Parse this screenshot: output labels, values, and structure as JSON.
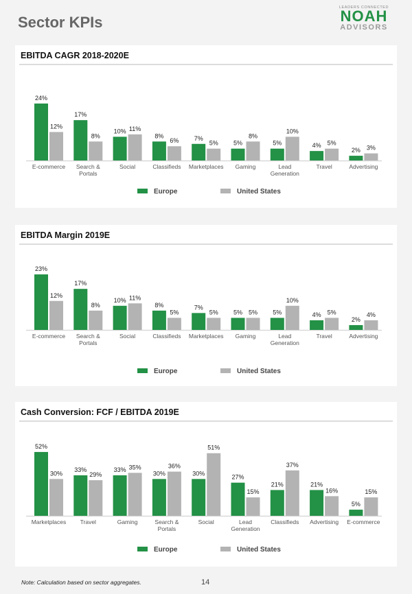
{
  "page": {
    "title": "Sector KPIs",
    "page_number": "14",
    "footnote": "Note: Calculation based on sector aggregates."
  },
  "logo": {
    "tagline": "LEADERS CONNECTED",
    "name": "NOAH",
    "sub": "ADVISORS"
  },
  "colors": {
    "europe": "#239146",
    "united_states": "#b3b3b3",
    "axis": "#d9d9d9",
    "label": "#555555",
    "value_label": "#222222"
  },
  "chart_data": [
    {
      "type": "bar",
      "title": "EBITDA CAGR 2018-2020E",
      "categories": [
        [
          "E-commerce"
        ],
        [
          "Search &",
          "Portals"
        ],
        [
          "Social"
        ],
        [
          "Classifieds"
        ],
        [
          "Marketplaces"
        ],
        [
          "Gaming"
        ],
        [
          "Lead",
          "Generation"
        ],
        [
          "Travel"
        ],
        [
          "Advertising"
        ]
      ],
      "series": [
        {
          "name": "Europe",
          "values": [
            24,
            17,
            10,
            8,
            7,
            5,
            5,
            4,
            2
          ]
        },
        {
          "name": "United States",
          "values": [
            12,
            8,
            11,
            6,
            5,
            8,
            10,
            5,
            3
          ]
        }
      ],
      "value_suffix": "%",
      "ylim": [
        0,
        26
      ],
      "legend": "bottom-center",
      "grid": false
    },
    {
      "type": "bar",
      "title": "EBITDA Margin 2019E",
      "categories": [
        [
          "E-commerce"
        ],
        [
          "Search &",
          "Portals"
        ],
        [
          "Social"
        ],
        [
          "Classifieds"
        ],
        [
          "Marketplaces"
        ],
        [
          "Gaming"
        ],
        [
          "Lead",
          "Generation"
        ],
        [
          "Travel"
        ],
        [
          "Advertising"
        ]
      ],
      "series": [
        {
          "name": "Europe",
          "values": [
            23,
            17,
            10,
            8,
            7,
            5,
            5,
            4,
            2
          ]
        },
        {
          "name": "United States",
          "values": [
            12,
            8,
            11,
            5,
            5,
            5,
            10,
            5,
            4
          ]
        }
      ],
      "value_suffix": "%",
      "ylim": [
        0,
        25
      ],
      "legend": "bottom-center",
      "grid": false
    },
    {
      "type": "bar",
      "title": "Cash Conversion: FCF / EBITDA 2019E",
      "categories": [
        [
          "Marketplaces"
        ],
        [
          "Travel"
        ],
        [
          "Gaming"
        ],
        [
          "Search &",
          "Portals"
        ],
        [
          "Social"
        ],
        [
          "Lead",
          "Generation"
        ],
        [
          "Classifieds"
        ],
        [
          "Advertising"
        ],
        [
          "E-commerce"
        ]
      ],
      "series": [
        {
          "name": "Europe",
          "values": [
            52,
            33,
            33,
            30,
            30,
            27,
            21,
            21,
            5
          ]
        },
        {
          "name": "United States",
          "values": [
            30,
            29,
            35,
            36,
            51,
            15,
            37,
            16,
            15
          ]
        }
      ],
      "value_suffix": "%",
      "ylim": [
        0,
        57
      ],
      "legend": "bottom-center",
      "grid": false
    }
  ]
}
